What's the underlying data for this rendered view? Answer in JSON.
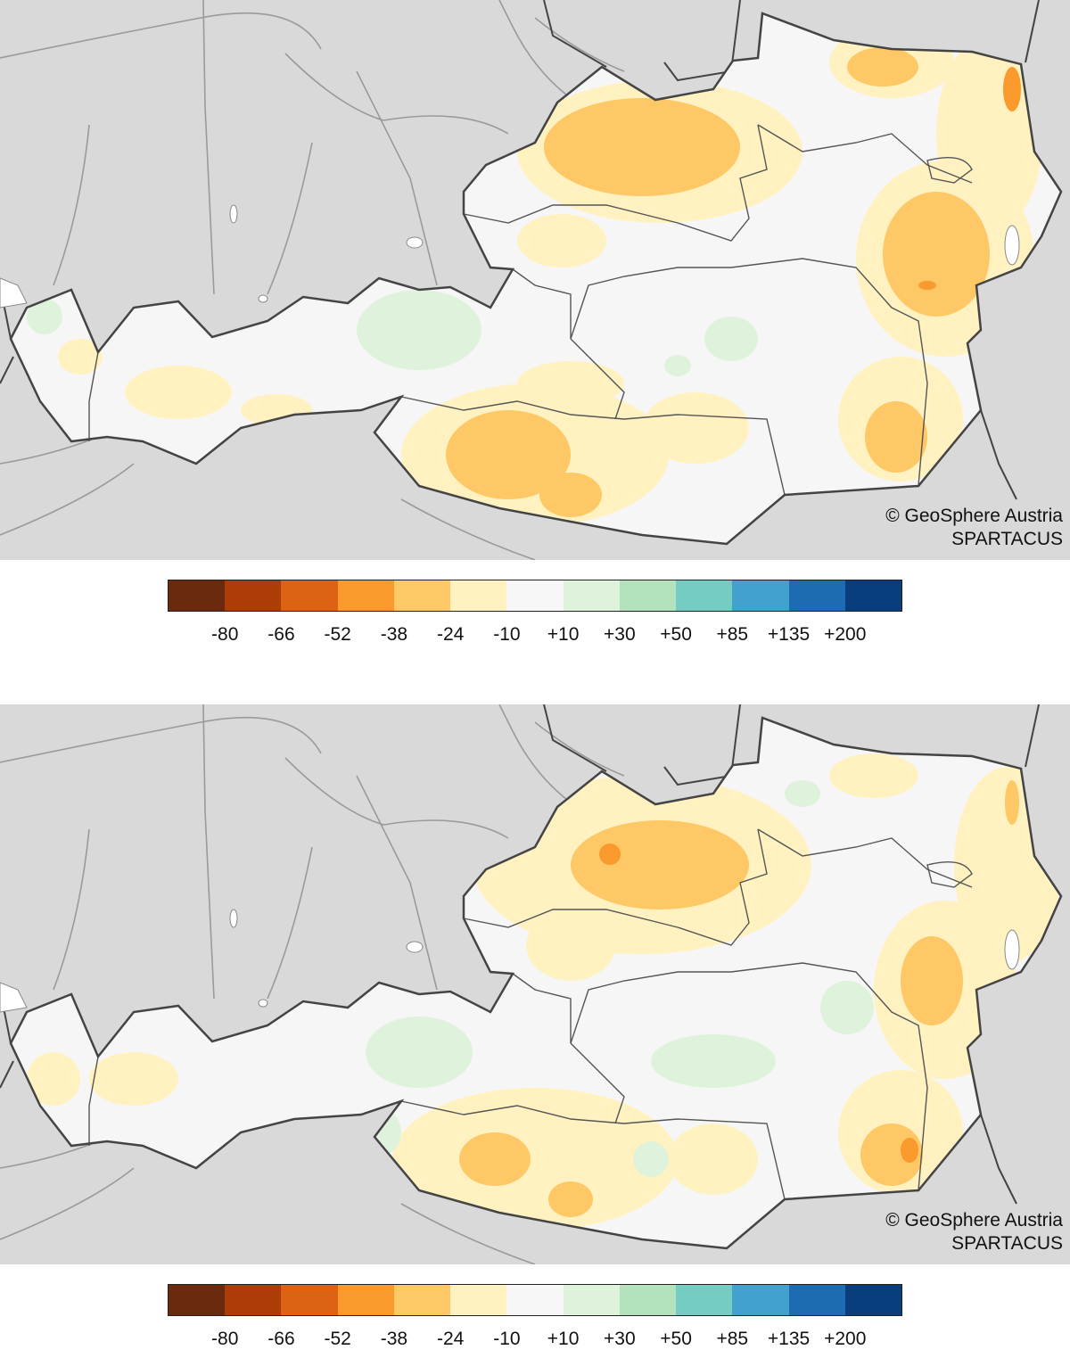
{
  "maps": [
    {
      "credit": "© GeoSphere Austria",
      "source": "SPARTACUS"
    },
    {
      "credit": "© GeoSphere Austria",
      "source": "SPARTACUS"
    }
  ],
  "legend": {
    "colors": [
      "#6b2a0e",
      "#ad3d07",
      "#de6213",
      "#fb9a2c",
      "#fdc865",
      "#fff2c0",
      "#f7f7f7",
      "#dff2dc",
      "#b3e2bd",
      "#74ccc2",
      "#43a2cd",
      "#1d6cb1",
      "#0a3d7e"
    ],
    "ticks": [
      "-80",
      "-66",
      "-52",
      "-38",
      "-24",
      "-10",
      "+10",
      "+30",
      "+50",
      "+85",
      "+135",
      "+200"
    ]
  },
  "colors": {
    "background": "#d9d9d9",
    "country_fill": "#f6f6f6",
    "border": "#444444",
    "rivers": "#9a9a9a"
  }
}
